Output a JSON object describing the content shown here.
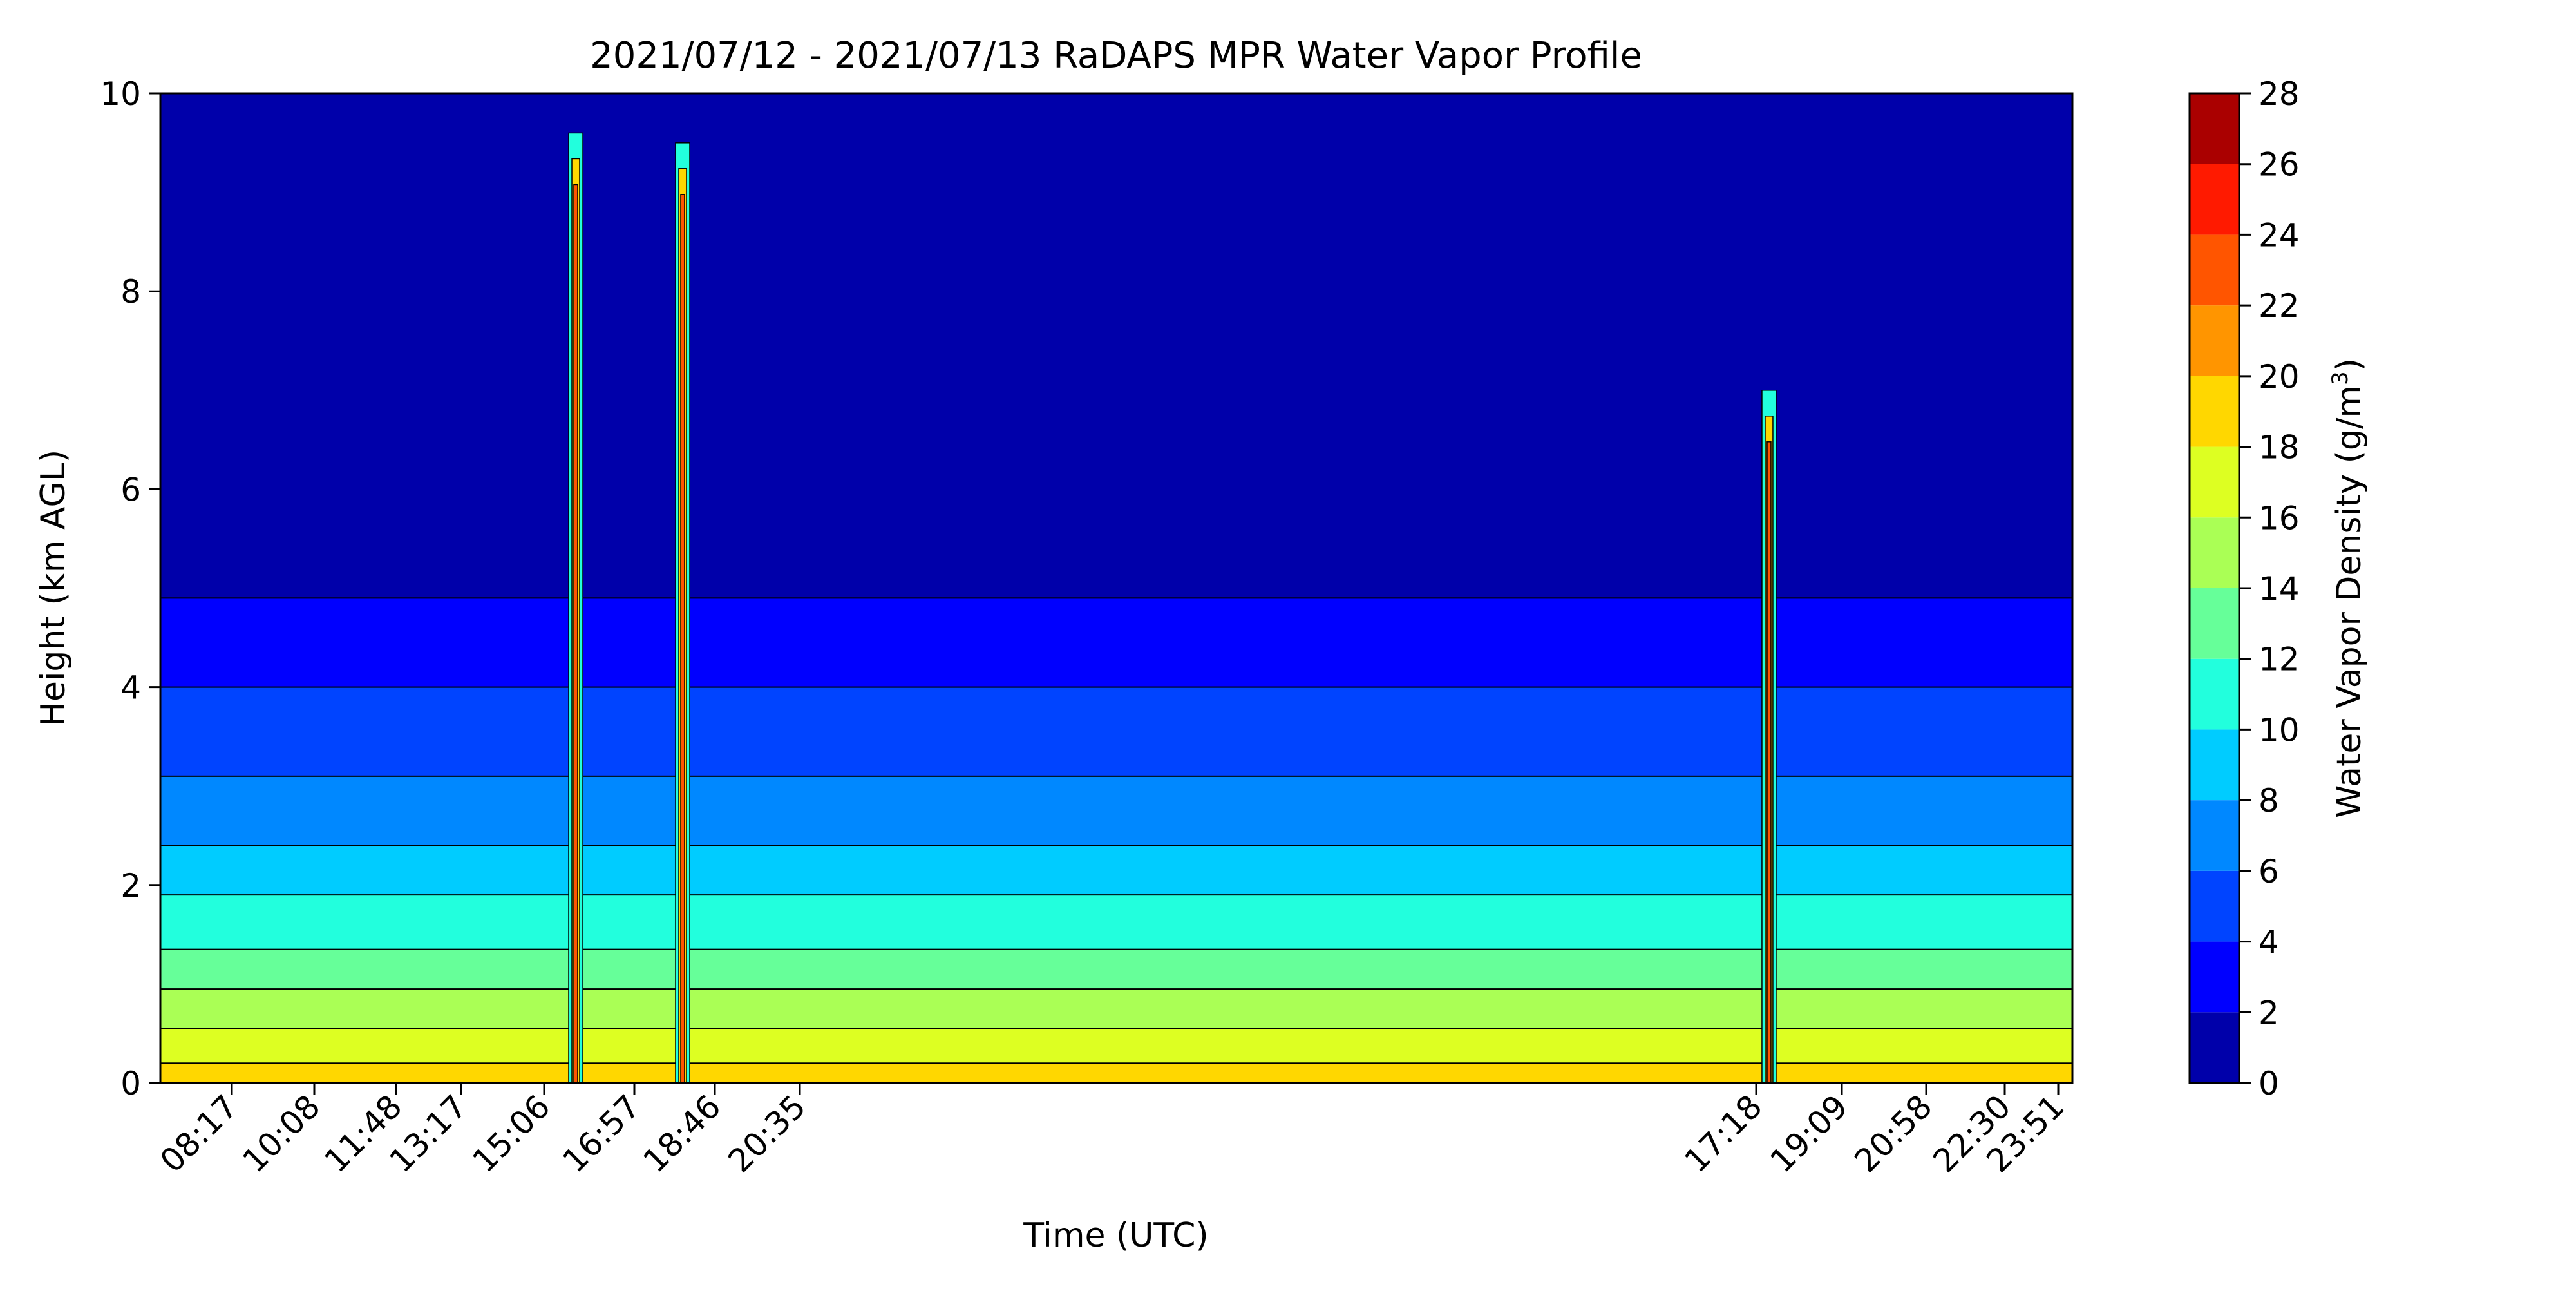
{
  "chart_data": {
    "type": "heatmap",
    "subtype": "filled-contour",
    "title": "2021/07/12 - 2021/07/13 RaDAPS MPR Water Vapor Profile",
    "xlabel": "Time (UTC)",
    "ylabel": "Height (km AGL)",
    "ylim": [
      0,
      10
    ],
    "y_ticks": [
      0,
      2,
      4,
      6,
      8,
      10
    ],
    "x_tick_labels": [
      "08:17",
      "10:08",
      "11:48",
      "13:17",
      "15:06",
      "16:57",
      "18:46",
      "20:35",
      "17:18",
      "19:09",
      "20:58",
      "22:30",
      "23:51"
    ],
    "grid": false,
    "colorbar": {
      "label_main": "Water Vapor Density (g/m",
      "label_sup": "3",
      "label_end": ")",
      "levels": [
        0,
        2,
        4,
        6,
        8,
        10,
        12,
        14,
        16,
        18,
        20,
        22,
        24,
        26,
        28
      ],
      "colors": [
        "#0000aa",
        "#0000ff",
        "#0044ff",
        "#0088ff",
        "#00ccff",
        "#22ffdd",
        "#66ff99",
        "#aaff55",
        "#ddff22",
        "#ffd700",
        "#ff9500",
        "#ff5500",
        "#ff1a00",
        "#aa0000"
      ]
    },
    "bands": [
      {
        "level": 0,
        "height_km": 10.0
      },
      {
        "level": 2,
        "height_km": 4.9
      },
      {
        "level": 4,
        "height_km": 4.0
      },
      {
        "level": 6,
        "height_km": 3.1
      },
      {
        "level": 8,
        "height_km": 2.4
      },
      {
        "level": 10,
        "height_km": 1.9
      },
      {
        "level": 12,
        "height_km": 1.35
      },
      {
        "level": 14,
        "height_km": 0.95
      },
      {
        "level": 16,
        "height_km": 0.55
      },
      {
        "level": 18,
        "height_km": 0.2
      }
    ],
    "spikes": [
      {
        "tick_index": 4.35,
        "height_km": 9.6
      },
      {
        "tick_index": 5.6,
        "height_km": 9.5
      },
      {
        "tick_index": 8.15,
        "height_km": 7.0
      }
    ]
  }
}
